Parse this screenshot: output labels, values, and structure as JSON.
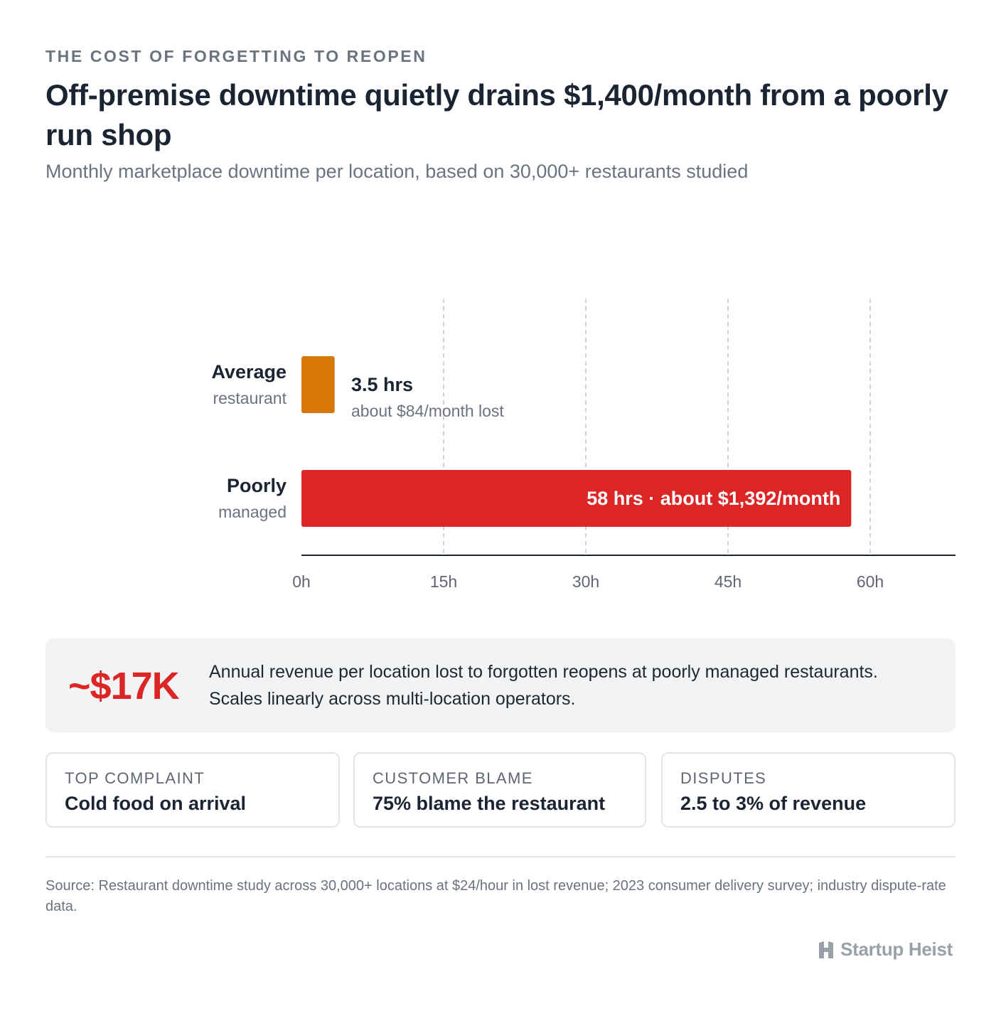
{
  "eyebrow": "THE COST OF FORGETTING TO REOPEN",
  "title": "Off-premise downtime quietly drains $1,400/month from a poorly run shop",
  "subtitle": "Monthly marketplace downtime per location, based on 30,000+ restaurants studied",
  "chart_data": {
    "type": "bar",
    "orientation": "horizontal",
    "categories": [
      {
        "name": "Average",
        "sub": "restaurant"
      },
      {
        "name": "Poorly",
        "sub": "managed"
      }
    ],
    "values": [
      3.5,
      58
    ],
    "value_labels": [
      {
        "main": "3.5 hrs",
        "sub": "about $84/month lost",
        "placement": "outside"
      },
      {
        "main": "58 hrs · about $1,392/month",
        "placement": "inside"
      }
    ],
    "colors": [
      "#d97706",
      "#dc2626"
    ],
    "xlim": [
      0,
      69
    ],
    "xticks": [
      0,
      15,
      30,
      45,
      60
    ],
    "xtick_labels": [
      "0h",
      "15h",
      "30h",
      "45h",
      "60h"
    ],
    "grid": "vertical-dashed"
  },
  "callout": {
    "big": "~$17K",
    "text": "Annual revenue per location lost to forgotten reopens at poorly managed restaurants. Scales linearly across multi-location operators."
  },
  "cards": [
    {
      "key": "TOP COMPLAINT",
      "value": "Cold food on arrival"
    },
    {
      "key": "CUSTOMER BLAME",
      "value": "75% blame the restaurant"
    },
    {
      "key": "DISPUTES",
      "value": "2.5 to 3% of revenue"
    }
  ],
  "source": "Source: Restaurant downtime study across 30,000+ locations at $24/hour in lost revenue; 2023 consumer delivery survey; industry dispute-rate data.",
  "brand": "Startup Heist"
}
